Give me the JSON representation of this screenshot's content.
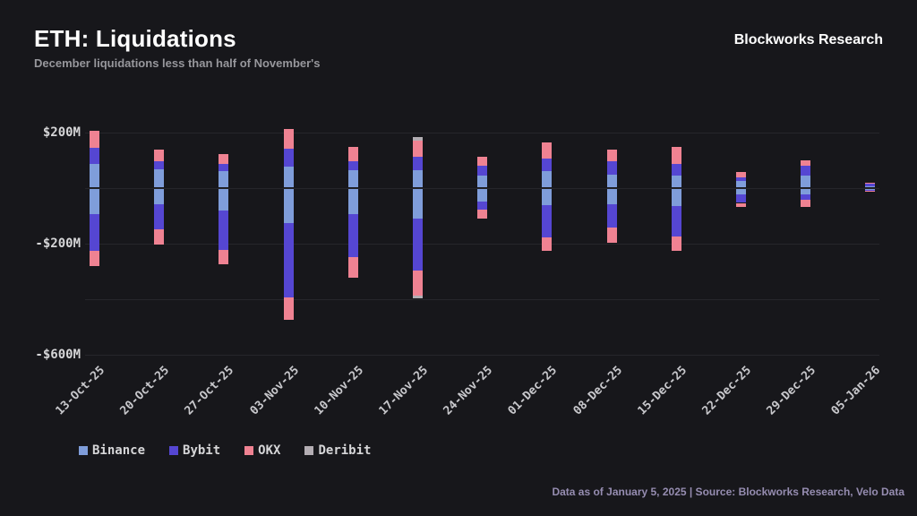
{
  "header": {
    "title": "ETH: Liquidations",
    "subtitle": "December liquidations less than half of November's",
    "brand": "Blockworks Research"
  },
  "footer": {
    "note": "Data as of January 5, 2025 | Source: Blockworks Research, Velo Data"
  },
  "colors": {
    "background": "#17171b",
    "grid": "#26262b",
    "binance": "#7f9dda",
    "bybit": "#5546d2",
    "okx": "#ef8292",
    "deribit": "#b3adb3"
  },
  "chart_data": {
    "type": "bar",
    "stacked": true,
    "orientation": "vertical-diverging",
    "title": "ETH: Liquidations",
    "subtitle": "December liquidations less than half of November's",
    "units": "$M",
    "ylim": [
      -700,
      240
    ],
    "grid": true,
    "legend_position": "bottom-left",
    "categories": [
      "13-Oct-25",
      "20-Oct-25",
      "27-Oct-25",
      "03-Nov-25",
      "10-Nov-25",
      "17-Nov-25",
      "24-Nov-25",
      "01-Dec-25",
      "08-Dec-25",
      "15-Dec-25",
      "22-Dec-25",
      "29-Dec-25",
      "05-Jan-26"
    ],
    "y_ticks": [
      {
        "value": 200,
        "label": "$200M"
      },
      {
        "value": 0,
        "label": ""
      },
      {
        "value": -200,
        "label": "-$200M"
      },
      {
        "value": -400,
        "label": ""
      },
      {
        "value": -600,
        "label": "-$600M"
      }
    ],
    "series": [
      {
        "name": "Binance",
        "color_key": "binance",
        "positive_M": [
          84,
          66,
          58,
          73,
          60,
          61,
          41,
          58,
          45,
          42,
          21,
          41,
          4
        ],
        "negative_M": [
          90,
          55,
          77,
          121,
          91,
          107,
          45,
          59,
          54,
          62,
          20,
          18,
          2
        ]
      },
      {
        "name": "Bybit",
        "color_key": "bybit",
        "positive_M": [
          59,
          29,
          25,
          66,
          32,
          48,
          37,
          46,
          50,
          43,
          14,
          36,
          10
        ],
        "negative_M": [
          133,
          90,
          143,
          270,
          155,
          187,
          30,
          115,
          85,
          109,
          30,
          21,
          4
        ]
      },
      {
        "name": "OKX",
        "color_key": "okx",
        "positive_M": [
          61,
          41,
          35,
          70,
          53,
          59,
          32,
          56,
          41,
          59,
          19,
          21,
          3
        ],
        "negative_M": [
          56,
          55,
          52,
          80,
          73,
          91,
          30,
          50,
          54,
          50,
          16,
          25,
          1
        ]
      },
      {
        "name": "Deribit",
        "color_key": "deribit",
        "positive_M": [
          0,
          0,
          0,
          0,
          0,
          13,
          0,
          0,
          0,
          0,
          0,
          0,
          0
        ],
        "negative_M": [
          0,
          0,
          0,
          0,
          0,
          10,
          0,
          0,
          0,
          0,
          0,
          0,
          0
        ]
      }
    ],
    "legend": [
      "Binance",
      "Bybit",
      "OKX",
      "Deribit"
    ]
  }
}
